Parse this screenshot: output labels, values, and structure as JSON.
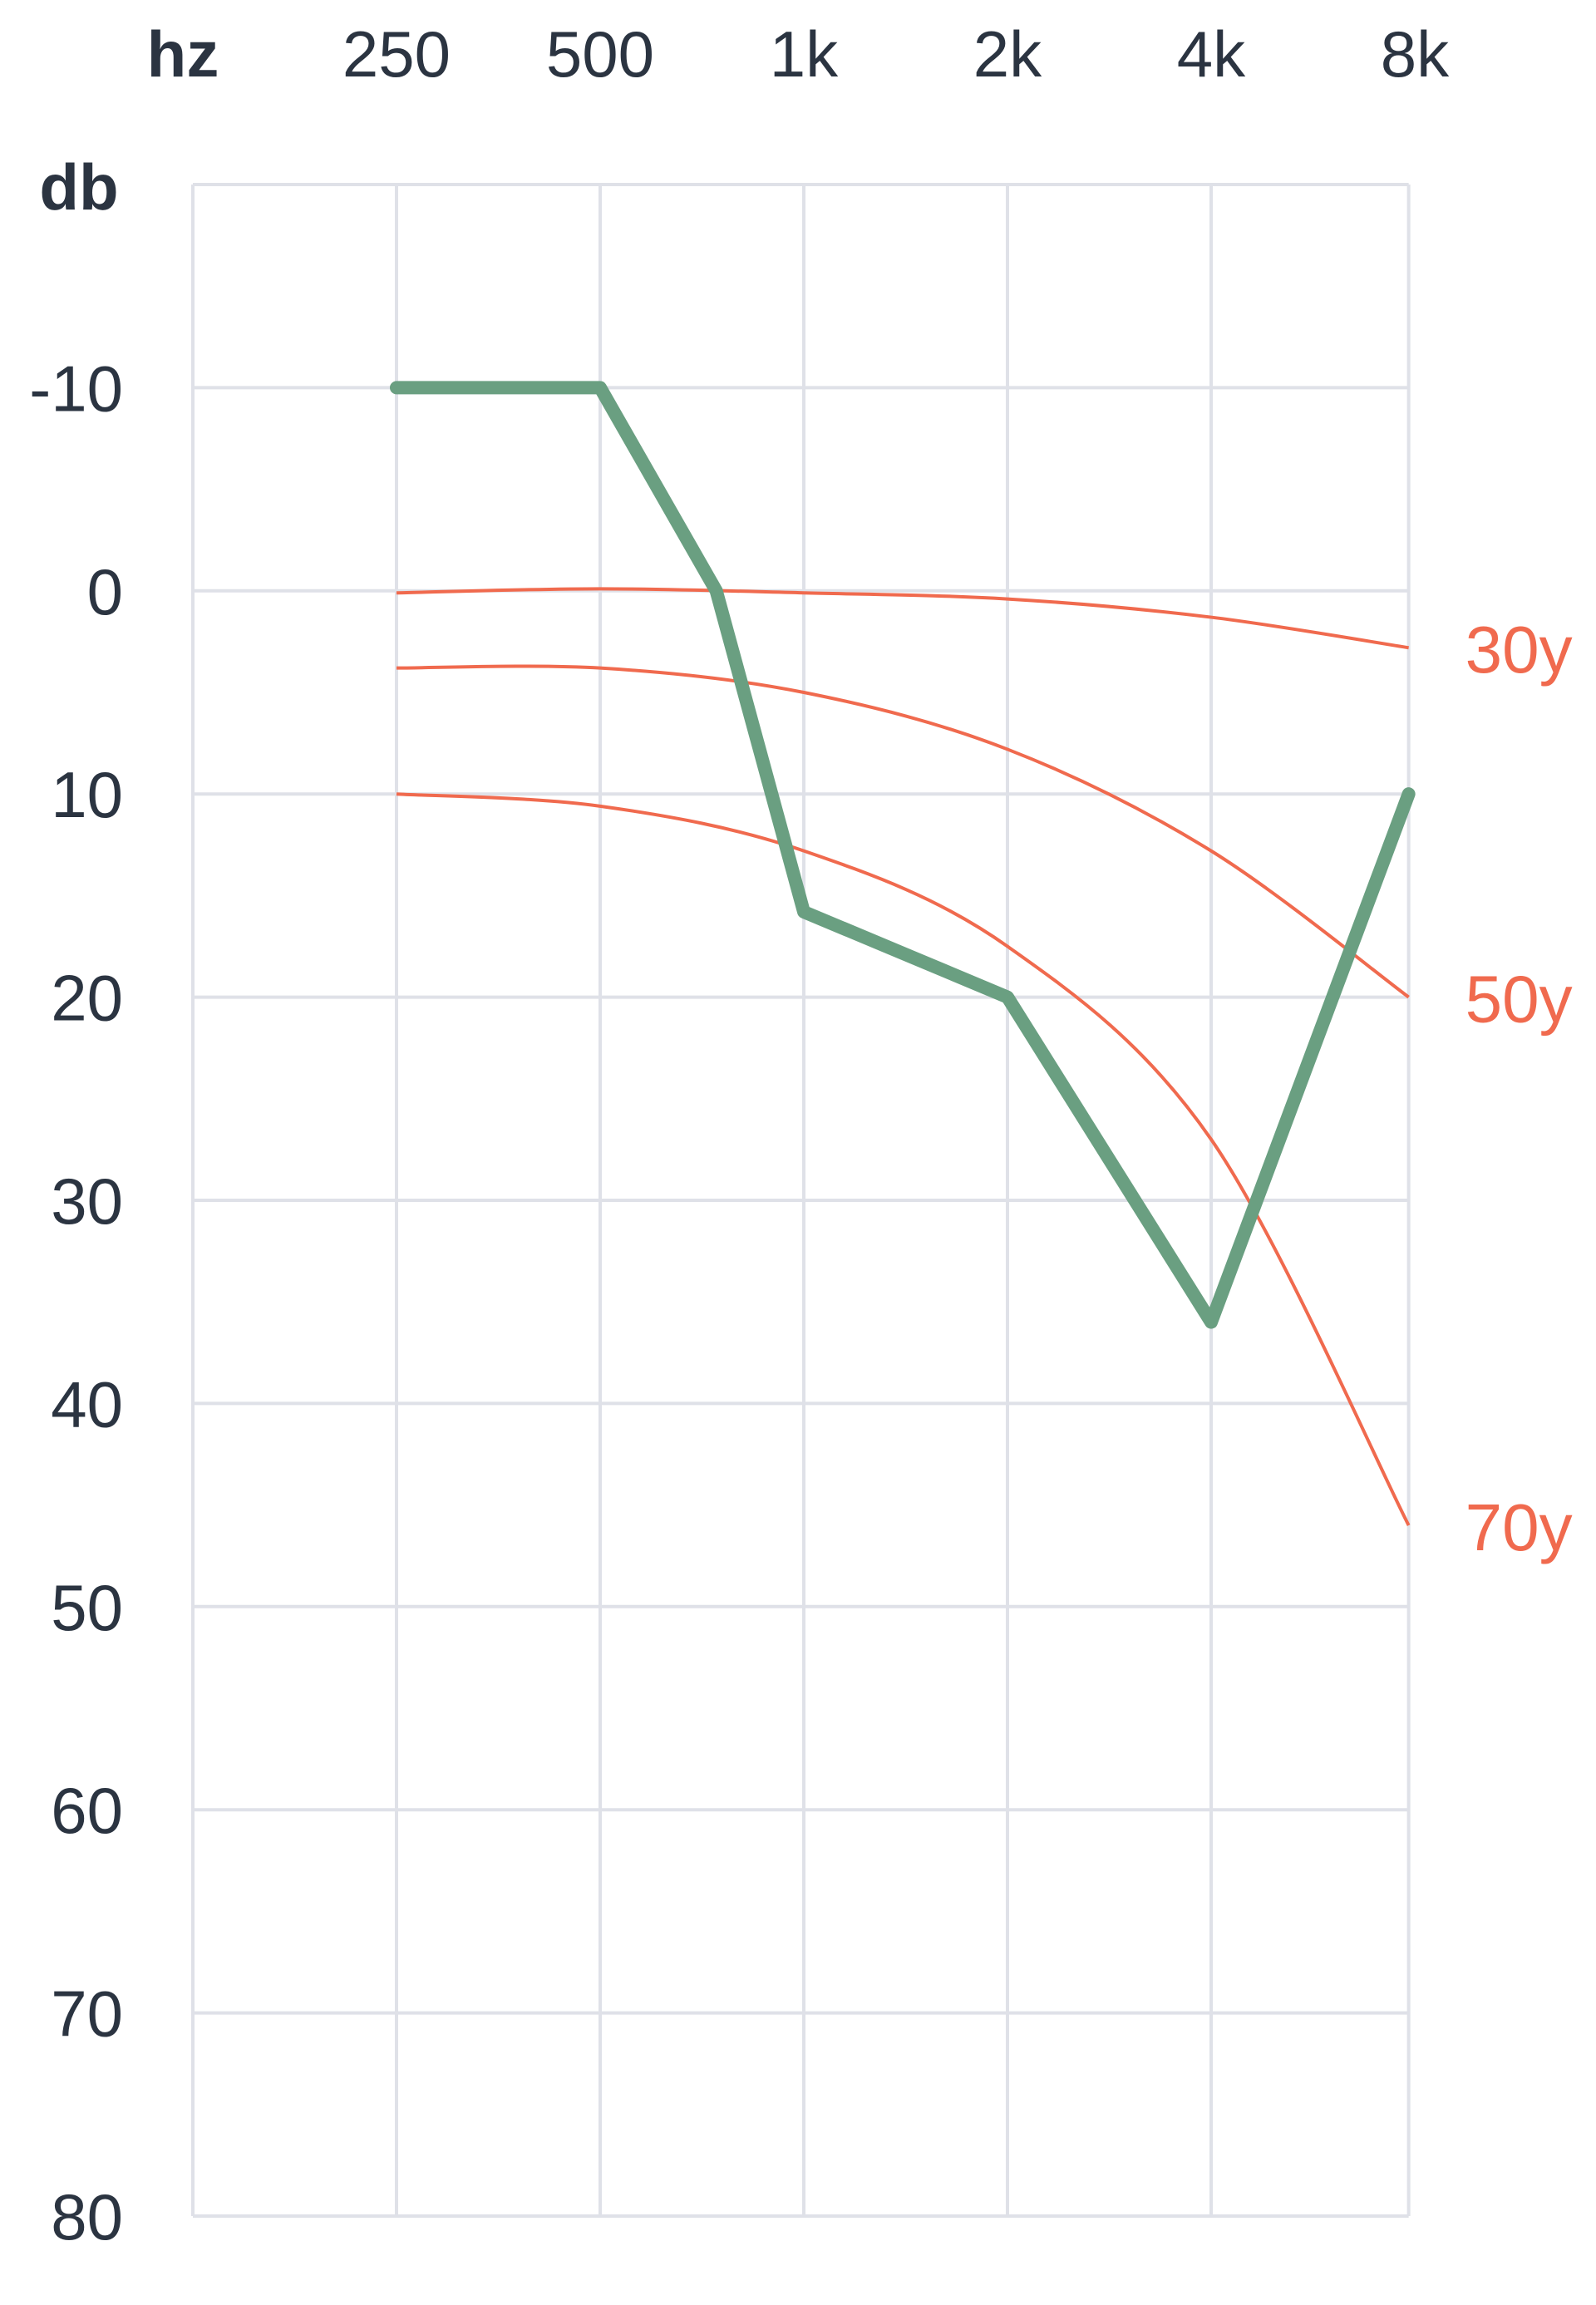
{
  "chart_data": {
    "type": "line",
    "title": "",
    "xlabel": "hz",
    "ylabel": "db",
    "x_categories": [
      "",
      "250",
      "500",
      "1k",
      "2k",
      "4k",
      "8k"
    ],
    "y_ticks": [
      "-10",
      "0",
      "10",
      "20",
      "30",
      "40",
      "50",
      "60",
      "70",
      "80"
    ],
    "ylim": [
      -20,
      80
    ],
    "y_inverted": true,
    "grid": true,
    "measured": {
      "color": "#6a9f81",
      "points": [
        {
          "x": 1,
          "y": -10
        },
        {
          "x": 2,
          "y": -10
        },
        {
          "x": 2.57,
          "y": 0
        },
        {
          "x": 3,
          "y": 15.8
        },
        {
          "x": 4,
          "y": 20
        },
        {
          "x": 5,
          "y": 36
        },
        {
          "x": 5.97,
          "y": 10
        }
      ]
    },
    "reference_curves": [
      {
        "label": "30y",
        "color": "#f06a4e",
        "points": [
          {
            "x": 1,
            "y": 0.1
          },
          {
            "x": 2,
            "y": -0.1
          },
          {
            "x": 3,
            "y": 0.1
          },
          {
            "x": 4,
            "y": 0.4
          },
          {
            "x": 5,
            "y": 1.3
          },
          {
            "x": 5.97,
            "y": 2.8
          }
        ]
      },
      {
        "label": "50y",
        "color": "#f06a4e",
        "points": [
          {
            "x": 1,
            "y": 3.8
          },
          {
            "x": 2,
            "y": 3.8
          },
          {
            "x": 3,
            "y": 5
          },
          {
            "x": 4,
            "y": 7.8
          },
          {
            "x": 5,
            "y": 12.8
          },
          {
            "x": 5.97,
            "y": 20
          }
        ]
      },
      {
        "label": "70y",
        "color": "#f06a4e",
        "points": [
          {
            "x": 1,
            "y": 10
          },
          {
            "x": 2,
            "y": 10.6
          },
          {
            "x": 3,
            "y": 12.8
          },
          {
            "x": 4,
            "y": 17.5
          },
          {
            "x": 5,
            "y": 27
          },
          {
            "x": 5.97,
            "y": 46
          }
        ]
      }
    ]
  }
}
